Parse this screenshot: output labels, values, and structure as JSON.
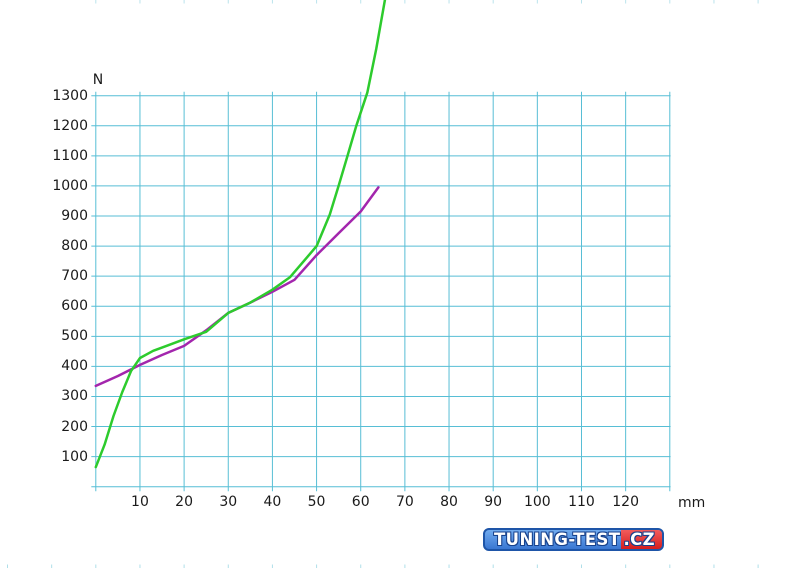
{
  "chart_data": {
    "type": "line",
    "title": "",
    "xlabel": "mm",
    "ylabel": "N",
    "xlim": [
      0,
      130
    ],
    "ylim": [
      0,
      1300
    ],
    "grid": true,
    "grid_step_x": 10,
    "grid_step_y": 100,
    "grid_color": "#57bed5",
    "edge_tick_color": "#8ed2e0",
    "legend": "none",
    "x_tick_labels": [
      10,
      20,
      30,
      40,
      50,
      60,
      70,
      80,
      90,
      100,
      110,
      120
    ],
    "y_tick_labels": [
      100,
      200,
      300,
      400,
      500,
      600,
      700,
      800,
      900,
      1000,
      1100,
      1200,
      1300
    ],
    "series": [
      {
        "name": "violet-curve",
        "color": "#a326ad",
        "points": [
          [
            0,
            335
          ],
          [
            5,
            368
          ],
          [
            10,
            405
          ],
          [
            15,
            438
          ],
          [
            20,
            468
          ],
          [
            25,
            520
          ],
          [
            30,
            578
          ],
          [
            35,
            612
          ],
          [
            40,
            648
          ],
          [
            45,
            688
          ],
          [
            50,
            770
          ],
          [
            55,
            843
          ],
          [
            60,
            915
          ],
          [
            64,
            995
          ]
        ]
      },
      {
        "name": "green-curve",
        "color": "#2dcb2d",
        "points": [
          [
            0,
            65
          ],
          [
            2,
            140
          ],
          [
            4,
            235
          ],
          [
            6,
            315
          ],
          [
            8,
            385
          ],
          [
            10,
            428
          ],
          [
            13,
            452
          ],
          [
            16,
            468
          ],
          [
            20,
            490
          ],
          [
            25,
            515
          ],
          [
            30,
            578
          ],
          [
            35,
            612
          ],
          [
            40,
            655
          ],
          [
            44,
            697
          ],
          [
            47,
            748
          ],
          [
            50,
            800
          ],
          [
            53,
            905
          ],
          [
            55,
            1000
          ],
          [
            57,
            1100
          ],
          [
            59,
            1200
          ],
          [
            61.5,
            1310
          ],
          [
            63.5,
            1455
          ],
          [
            65.5,
            1620
          ]
        ]
      }
    ]
  },
  "watermark": {
    "main": "TUNING-TEST",
    "suffix": ".CZ",
    "blue": "#3a77d2",
    "red": "#d51d1d",
    "border": "#1e55a8"
  }
}
